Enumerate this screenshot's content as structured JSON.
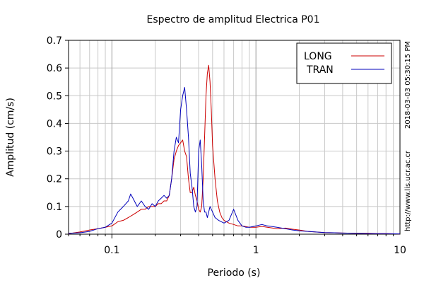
{
  "chart_data": {
    "type": "line",
    "title": "Espectro de amplitud Electrica P01",
    "xlabel": "Periodo (s)",
    "ylabel": "Amplitud (cm/s)",
    "xscale": "log",
    "xlim": [
      0.05,
      10
    ],
    "ylim": [
      0,
      0.7
    ],
    "x_ticks": [
      {
        "value": 0.1,
        "label": "0.1"
      },
      {
        "value": 1,
        "label": "1"
      },
      {
        "value": 10,
        "label": "10"
      }
    ],
    "y_ticks": [
      {
        "value": 0,
        "label": "0"
      },
      {
        "value": 0.1,
        "label": "0.1"
      },
      {
        "value": 0.2,
        "label": "0.2"
      },
      {
        "value": 0.3,
        "label": "0.3"
      },
      {
        "value": 0.4,
        "label": "0.4"
      },
      {
        "value": 0.5,
        "label": "0.5"
      },
      {
        "value": 0.6,
        "label": "0.6"
      },
      {
        "value": 0.7,
        "label": "0.7"
      }
    ],
    "grid": true,
    "legend_position": "top-right",
    "series": [
      {
        "name": "LONG",
        "color": "#cc0000",
        "x": [
          0.05,
          0.06,
          0.07,
          0.08,
          0.09,
          0.1,
          0.11,
          0.12,
          0.13,
          0.14,
          0.15,
          0.16,
          0.17,
          0.18,
          0.19,
          0.2,
          0.21,
          0.22,
          0.23,
          0.24,
          0.25,
          0.26,
          0.27,
          0.28,
          0.29,
          0.3,
          0.31,
          0.32,
          0.33,
          0.34,
          0.35,
          0.36,
          0.37,
          0.38,
          0.39,
          0.4,
          0.41,
          0.42,
          0.43,
          0.44,
          0.45,
          0.46,
          0.47,
          0.48,
          0.49,
          0.5,
          0.52,
          0.54,
          0.56,
          0.58,
          0.6,
          0.65,
          0.7,
          0.75,
          0.8,
          0.9,
          1.0,
          1.1,
          1.2,
          1.4,
          1.6,
          1.8,
          2.0,
          2.3,
          2.6,
          3.0,
          3.5,
          4,
          5,
          6,
          7,
          8,
          10
        ],
        "y": [
          0.002,
          0.008,
          0.015,
          0.02,
          0.025,
          0.03,
          0.045,
          0.05,
          0.06,
          0.07,
          0.08,
          0.09,
          0.09,
          0.1,
          0.1,
          0.1,
          0.11,
          0.11,
          0.12,
          0.12,
          0.14,
          0.2,
          0.27,
          0.3,
          0.32,
          0.33,
          0.34,
          0.3,
          0.28,
          0.2,
          0.15,
          0.15,
          0.17,
          0.14,
          0.12,
          0.09,
          0.08,
          0.1,
          0.2,
          0.35,
          0.5,
          0.58,
          0.61,
          0.55,
          0.45,
          0.32,
          0.2,
          0.12,
          0.08,
          0.06,
          0.05,
          0.04,
          0.035,
          0.03,
          0.03,
          0.025,
          0.025,
          0.028,
          0.025,
          0.02,
          0.022,
          0.018,
          0.015,
          0.01,
          0.008,
          0.006,
          0.005,
          0.004,
          0.003,
          0.003,
          0.002,
          0.002,
          0.001
        ]
      },
      {
        "name": "TRAN",
        "color": "#0000bb",
        "x": [
          0.05,
          0.06,
          0.07,
          0.08,
          0.09,
          0.1,
          0.11,
          0.12,
          0.13,
          0.135,
          0.14,
          0.15,
          0.16,
          0.17,
          0.18,
          0.19,
          0.2,
          0.21,
          0.22,
          0.23,
          0.24,
          0.25,
          0.26,
          0.27,
          0.28,
          0.29,
          0.3,
          0.31,
          0.32,
          0.33,
          0.34,
          0.35,
          0.36,
          0.37,
          0.38,
          0.39,
          0.4,
          0.41,
          0.42,
          0.43,
          0.44,
          0.45,
          0.46,
          0.47,
          0.48,
          0.5,
          0.52,
          0.55,
          0.6,
          0.65,
          0.7,
          0.75,
          0.8,
          0.85,
          0.9,
          1.0,
          1.1,
          1.2,
          1.4,
          1.6,
          1.8,
          2.0,
          2.3,
          2.6,
          3.0,
          3.5,
          4,
          5,
          6,
          7,
          8,
          10
        ],
        "y": [
          0.003,
          0.005,
          0.01,
          0.02,
          0.025,
          0.04,
          0.08,
          0.1,
          0.12,
          0.145,
          0.13,
          0.1,
          0.12,
          0.1,
          0.09,
          0.11,
          0.1,
          0.12,
          0.13,
          0.14,
          0.13,
          0.14,
          0.2,
          0.3,
          0.35,
          0.33,
          0.45,
          0.5,
          0.53,
          0.45,
          0.35,
          0.22,
          0.17,
          0.1,
          0.08,
          0.1,
          0.3,
          0.34,
          0.25,
          0.12,
          0.08,
          0.08,
          0.06,
          0.08,
          0.1,
          0.08,
          0.06,
          0.05,
          0.04,
          0.05,
          0.09,
          0.05,
          0.03,
          0.025,
          0.025,
          0.03,
          0.035,
          0.03,
          0.025,
          0.02,
          0.015,
          0.012,
          0.01,
          0.008,
          0.006,
          0.005,
          0.004,
          0.003,
          0.002,
          0.002,
          0.002,
          0.001
        ]
      }
    ],
    "side_annotations": [
      "2018-03-03 05:30:15 PM",
      "http://www.lis.ucr.ac.cr"
    ]
  }
}
